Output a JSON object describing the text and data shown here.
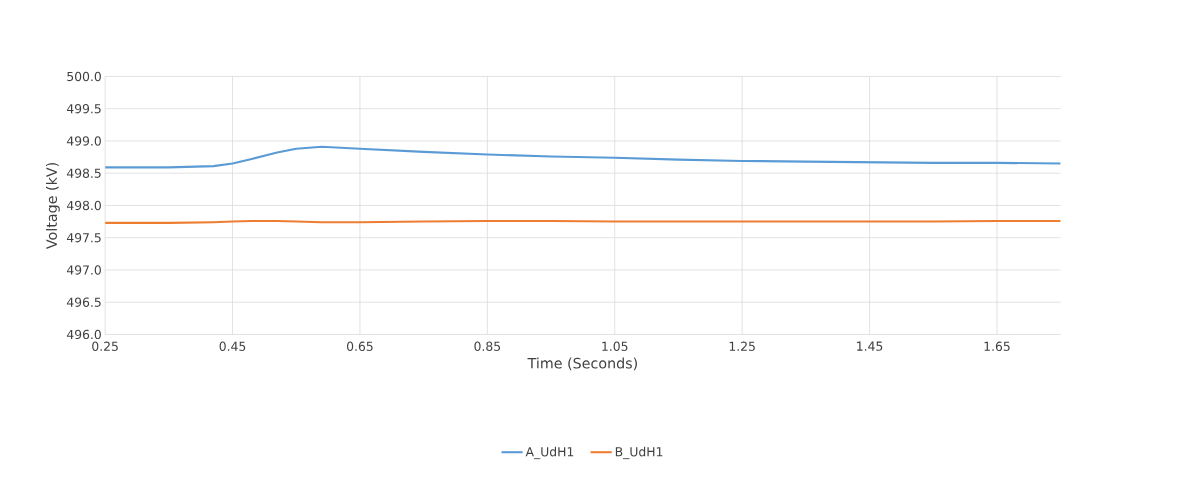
{
  "chart_data": {
    "type": "line",
    "xlabel": "Time (Seconds)",
    "ylabel": "Voltage (kV)",
    "xlim": [
      0.25,
      1.75
    ],
    "xticks": [
      0.25,
      0.45,
      0.65,
      0.85,
      1.05,
      1.25,
      1.45,
      1.65
    ],
    "ylim": [
      496,
      500
    ],
    "yticks": [
      {
        "value": 496,
        "label": "496.0"
      },
      {
        "value": 496.5,
        "label": "496.5"
      },
      {
        "value": 497,
        "label": "497.0"
      },
      {
        "value": 497.5,
        "label": "497.5"
      },
      {
        "value": 498,
        "label": "498.0"
      },
      {
        "value": 498.5,
        "label": "498.5"
      },
      {
        "value": 499,
        "label": "499.0"
      },
      {
        "value": 499.5,
        "label": "499.5"
      },
      {
        "value": 500,
        "label": "500.0"
      }
    ],
    "grid": true,
    "legend": "bottom",
    "marker": "none",
    "line_style": "solid",
    "x": [
      0.25,
      0.35,
      0.42,
      0.45,
      0.48,
      0.52,
      0.55,
      0.59,
      0.65,
      0.75,
      0.85,
      0.95,
      1.05,
      1.15,
      1.25,
      1.35,
      1.45,
      1.55,
      1.65,
      1.75
    ],
    "series": [
      {
        "name": "A_UdH1",
        "color": "#5b9bd5",
        "values": [
          498.59,
          498.59,
          498.61,
          498.65,
          498.72,
          498.82,
          498.88,
          498.91,
          498.88,
          498.83,
          498.79,
          498.76,
          498.74,
          498.71,
          498.69,
          498.68,
          498.67,
          498.66,
          498.66,
          498.65
        ]
      },
      {
        "name": "B_UdH1",
        "color": "#ed7d31",
        "values": [
          497.73,
          497.73,
          497.74,
          497.75,
          497.76,
          497.76,
          497.75,
          497.74,
          497.74,
          497.75,
          497.76,
          497.76,
          497.75,
          497.75,
          497.75,
          497.75,
          497.75,
          497.75,
          497.76,
          497.76
        ]
      }
    ]
  }
}
